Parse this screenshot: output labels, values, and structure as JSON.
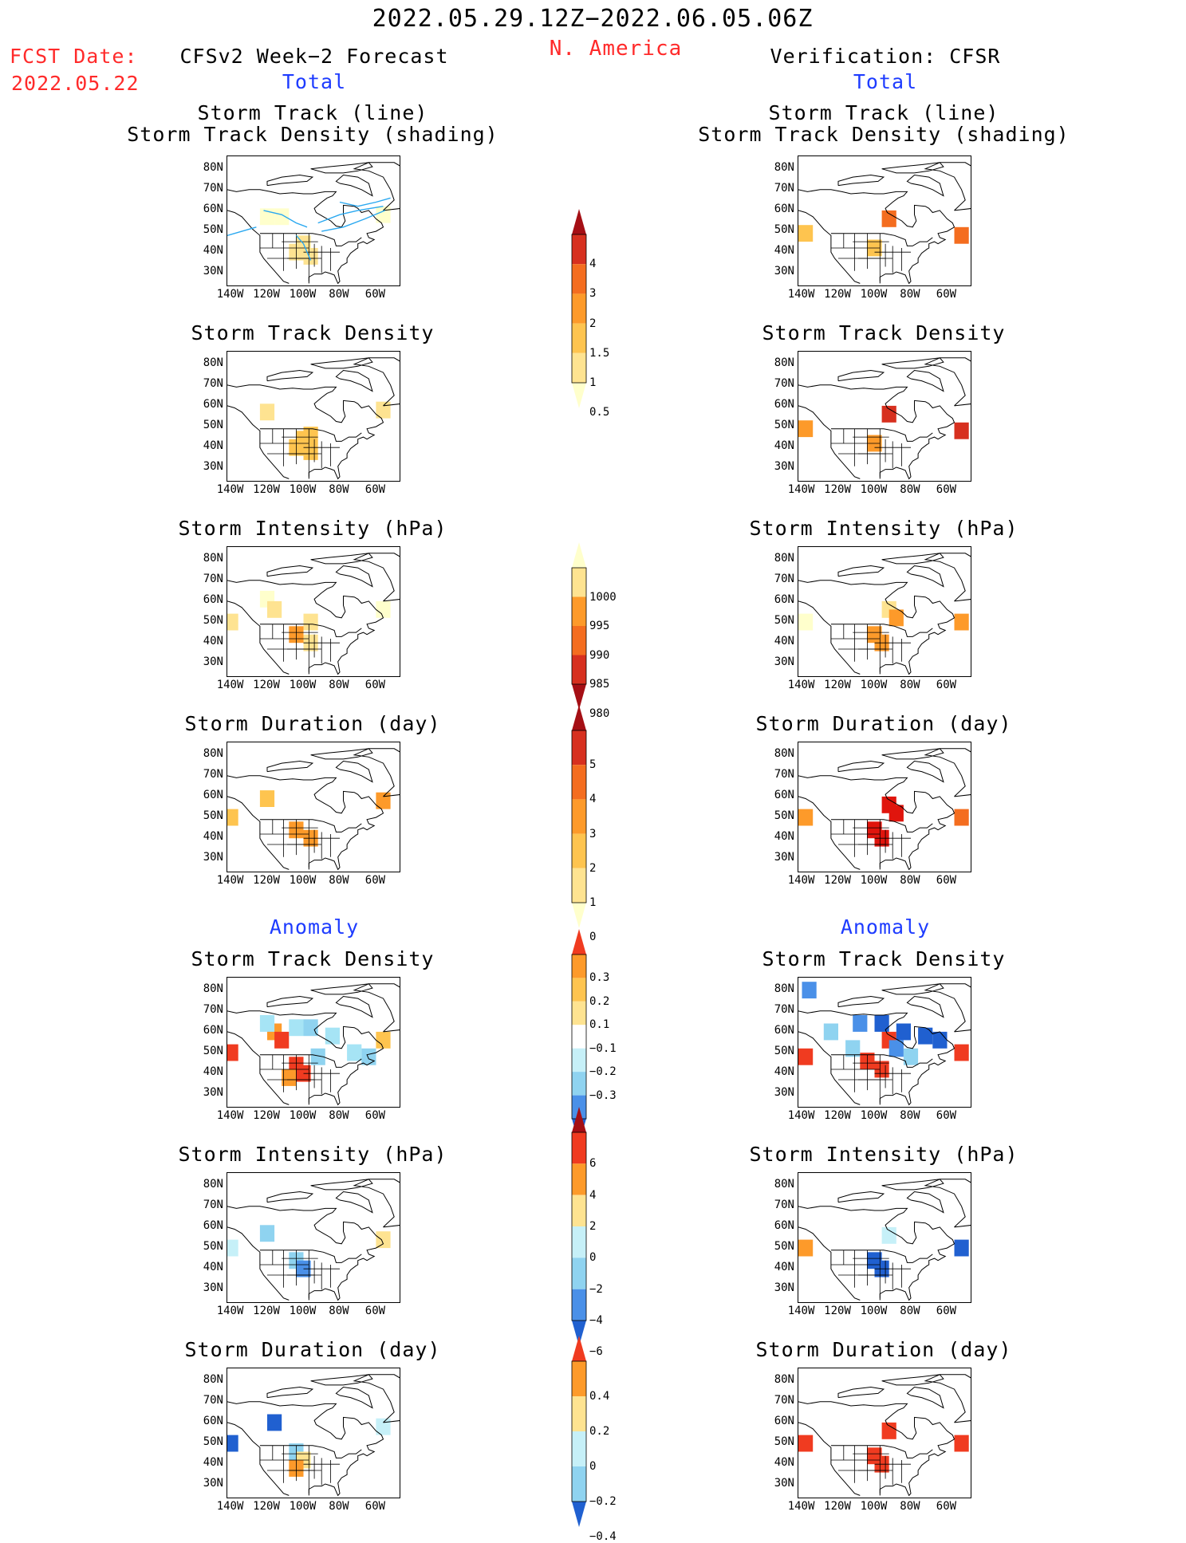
{
  "header": {
    "date_range": "2022.05.29.12Z−2022.06.05.06Z",
    "region": "N. America",
    "fcst_label": "FCST Date:",
    "fcst_date": "2022.05.22",
    "left_title": "CFSv2 Week−2 Forecast",
    "right_title": "Verification: CFSR",
    "total_label": "Total",
    "anomaly_label": "Anomaly"
  },
  "axes": {
    "lat_labels": [
      "80N",
      "70N",
      "60N",
      "50N",
      "40N",
      "30N"
    ],
    "lon_labels": [
      "140W",
      "120W",
      "100W",
      "80W",
      "60W"
    ]
  },
  "panels": {
    "total_track": {
      "title_line1": "Storm Track (line)",
      "title_line2": "Storm Track Density (shading)"
    },
    "track_density": {
      "title": "Storm Track Density"
    },
    "intensity": {
      "title": "Storm Intensity (hPa)"
    },
    "duration": {
      "title": "Storm Duration (day)"
    }
  },
  "colorbars": {
    "density": {
      "labels": [
        "4",
        "3",
        "2",
        "1.5",
        "1",
        "0.5"
      ],
      "colors": [
        "#a50f15",
        "#d7301f",
        "#f46d1f",
        "#fd9a2a",
        "#fec44f",
        "#fee391",
        "#ffffcc"
      ]
    },
    "intensity": {
      "labels": [
        "1000",
        "995",
        "990",
        "985",
        "980"
      ],
      "colors": [
        "#ffffcc",
        "#fee391",
        "#fd9a2a",
        "#f46d1f",
        "#d7301f",
        "#a50f15"
      ]
    },
    "duration": {
      "labels": [
        "5",
        "4",
        "3",
        "2",
        "1",
        "0"
      ],
      "colors": [
        "#a50f15",
        "#d7301f",
        "#f46d1f",
        "#fd9a2a",
        "#fec44f",
        "#fee391",
        "#ffffcc"
      ]
    },
    "anom_density": {
      "labels": [
        "0.3",
        "0.2",
        "0.1",
        "−0.1",
        "−0.2",
        "−0.3"
      ],
      "colors": [
        "#f03b20",
        "#fd9a2a",
        "#fec44f",
        "#fee391",
        "#ffffff",
        "#c6f0f8",
        "#8fd3f0",
        "#4a90e8",
        "#2060d0"
      ]
    },
    "anom_intensity": {
      "labels": [
        "6",
        "4",
        "2",
        "0",
        "−2",
        "−4",
        "−6"
      ],
      "colors": [
        "#a50f15",
        "#f03b20",
        "#fd9a2a",
        "#fee391",
        "#c6f0f8",
        "#8fd3f0",
        "#4a90e8",
        "#2060d0"
      ]
    },
    "anom_duration": {
      "labels": [
        "0.4",
        "0.2",
        "0",
        "−0.2",
        "−0.4"
      ],
      "colors": [
        "#f03b20",
        "#fd9a2a",
        "#fee391",
        "#c6f0f8",
        "#8fd3f0",
        "#2060d0"
      ]
    }
  }
}
